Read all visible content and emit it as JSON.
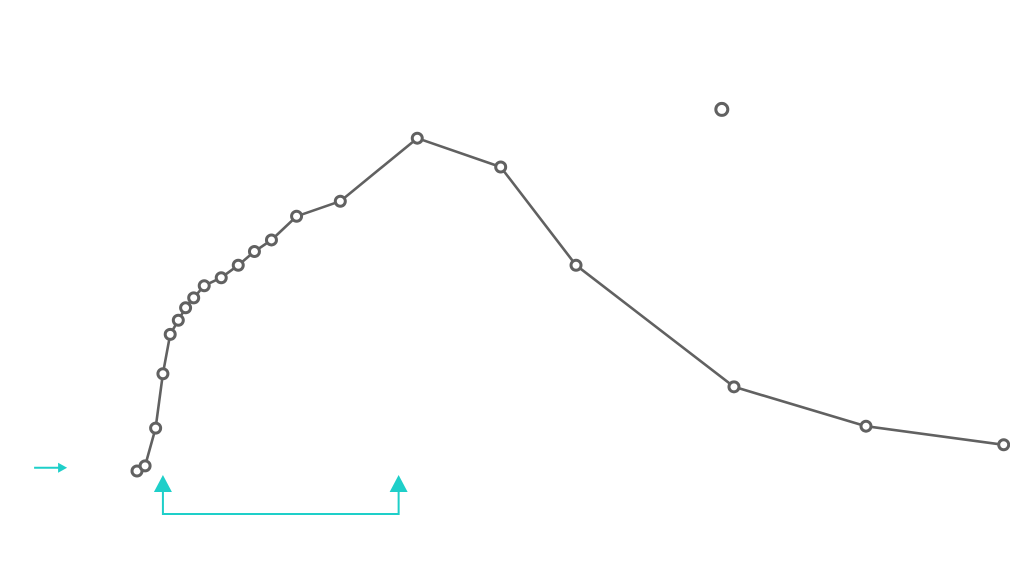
{
  "chart_data": {
    "type": "line",
    "title": "",
    "xlabel": "",
    "ylabel": "",
    "grid": false,
    "legend": "none",
    "colors": {
      "series": "#616161",
      "annotation": "#1ecfc9",
      "background": "#ffffff"
    },
    "xlim": [
      0,
      100
    ],
    "ylim": [
      0,
      100
    ],
    "series": [
      {
        "values": [
          {
            "x": 0.0,
            "y": 0.0
          },
          {
            "x": 1.0,
            "y": 1.6
          },
          {
            "x": 2.3,
            "y": 13.4
          },
          {
            "x": 3.2,
            "y": 30.4
          },
          {
            "x": 4.1,
            "y": 42.7
          },
          {
            "x": 5.1,
            "y": 47.1
          },
          {
            "x": 6.0,
            "y": 51.0
          },
          {
            "x": 7.0,
            "y": 54.1
          },
          {
            "x": 8.3,
            "y": 57.9
          },
          {
            "x": 10.4,
            "y": 60.4
          },
          {
            "x": 12.5,
            "y": 64.3
          },
          {
            "x": 14.5,
            "y": 68.6
          },
          {
            "x": 16.6,
            "y": 72.2
          },
          {
            "x": 19.7,
            "y": 79.6
          },
          {
            "x": 25.1,
            "y": 84.3
          },
          {
            "x": 34.6,
            "y": 104.0
          },
          {
            "x": 44.9,
            "y": 95.0
          },
          {
            "x": 54.2,
            "y": 64.3
          },
          {
            "x": 73.7,
            "y": 26.3
          },
          {
            "x": 90.0,
            "y": 14.0
          },
          {
            "x": 107.0,
            "y": 8.2
          }
        ]
      }
    ],
    "outliers": [
      {
        "x": 72.2,
        "y": 113.0
      }
    ],
    "annotations": {
      "arrow_right": {
        "x": -9.0,
        "y": 1.0
      },
      "bracket": {
        "x_start": 3.2,
        "x_end": 32.3
      }
    }
  }
}
